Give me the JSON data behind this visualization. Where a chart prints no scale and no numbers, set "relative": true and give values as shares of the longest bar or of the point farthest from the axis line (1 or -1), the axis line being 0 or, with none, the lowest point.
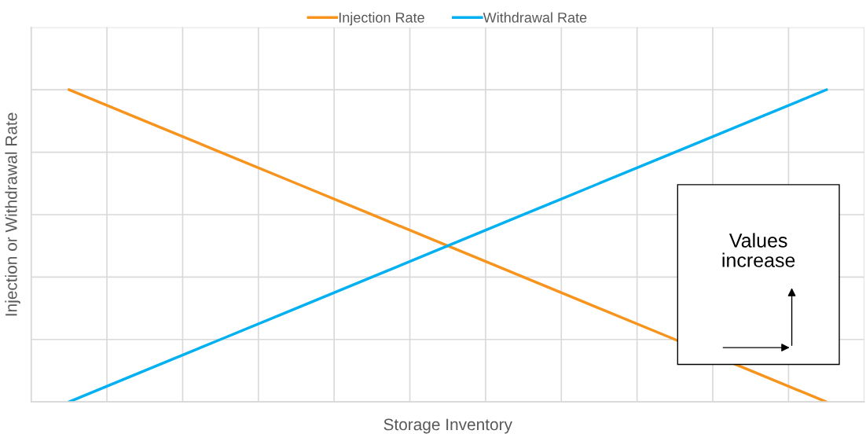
{
  "chart_data": {
    "type": "line",
    "xlabel": "Storage Inventory",
    "ylabel": "Injection or Withdrawal Rate",
    "categories": [
      null,
      null,
      null,
      null,
      null,
      null,
      null,
      null,
      null,
      null,
      null
    ],
    "relative": true,
    "series": [
      {
        "name": "Injection Rate",
        "color": "#f7941d",
        "values": [
          1,
          0.9,
          0.8,
          0.7,
          0.6,
          0.5,
          0.4,
          0.3,
          0.2,
          0.1,
          0
        ]
      },
      {
        "name": "Withdrawal Rate",
        "color": "#00b0f0",
        "values": [
          0,
          0.1,
          0.2,
          0.3,
          0.4,
          0.5,
          0.6,
          0.7,
          0.8,
          0.9,
          1
        ]
      }
    ],
    "annotations": [
      "Values\nincrease"
    ],
    "grid": true,
    "legend": "top",
    "marker": "none",
    "line_style": "solid"
  }
}
